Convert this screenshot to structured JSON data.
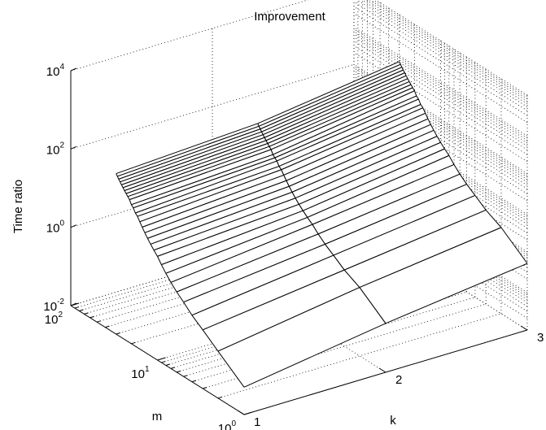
{
  "chart_data": {
    "type": "surface",
    "title": "Improvement",
    "xlabel": "k",
    "ylabel": "m",
    "zlabel": "Time ratio",
    "x_scale": "linear",
    "y_scale": "log",
    "z_scale": "log",
    "x_ticks": [
      "1",
      "2",
      "3"
    ],
    "y_ticks": [
      {
        "base": "10",
        "exp": "0"
      },
      {
        "base": "10",
        "exp": "1"
      },
      {
        "base": "10",
        "exp": "2"
      }
    ],
    "z_ticks": [
      {
        "base": "10",
        "exp": "-2"
      },
      {
        "base": "10",
        "exp": "0"
      },
      {
        "base": "10",
        "exp": "2"
      },
      {
        "base": "10",
        "exp": "4"
      }
    ],
    "xlim": [
      1,
      3
    ],
    "ylim": [
      1,
      100
    ],
    "zlim": [
      0.01,
      10000
    ],
    "k": [
      1,
      2,
      3
    ],
    "m": [
      1,
      2,
      3,
      4,
      5,
      6,
      7,
      8,
      9,
      10,
      11,
      12,
      13,
      14,
      15,
      16,
      17,
      18,
      19,
      20,
      21,
      22,
      23,
      24,
      25,
      26,
      27,
      28,
      29,
      30
    ],
    "time_ratio_k1": [
      0.0501,
      0.1585,
      0.3162,
      0.5012,
      0.7943,
      1.122,
      1.585,
      2.239,
      3.162,
      4.467,
      5.623,
      7.079,
      8.913,
      11.22,
      14.13,
      17.78,
      22.39,
      25.12,
      31.62,
      35.48,
      44.67,
      50.12,
      56.23,
      63.1,
      70.79,
      79.43,
      89.13,
      100.0,
      112.2,
      125.9
    ],
    "time_ratio_k2": [
      0.1778,
      0.5623,
      0.8913,
      1.413,
      1.995,
      2.818,
      3.981,
      5.012,
      6.31,
      7.943,
      10.0,
      12.59,
      15.85,
      19.95,
      25.12,
      31.62,
      35.48,
      44.67,
      50.12,
      56.23,
      70.79,
      79.43,
      89.13,
      100.0,
      112.2,
      125.9,
      141.3,
      158.5,
      177.8,
      199.5
    ],
    "time_ratio_k3": [
      0.5012,
      1.585,
      2.512,
      3.981,
      5.623,
      7.943,
      11.22,
      15.85,
      19.95,
      25.12,
      31.62,
      39.81,
      50.12,
      63.1,
      79.43,
      100.0,
      112.2,
      141.3,
      158.5,
      199.5,
      223.9,
      251.2,
      281.8,
      316.2,
      354.8,
      398.1,
      446.7,
      501.2,
      562.3,
      631.0
    ],
    "grid": true,
    "view": "3d"
  }
}
